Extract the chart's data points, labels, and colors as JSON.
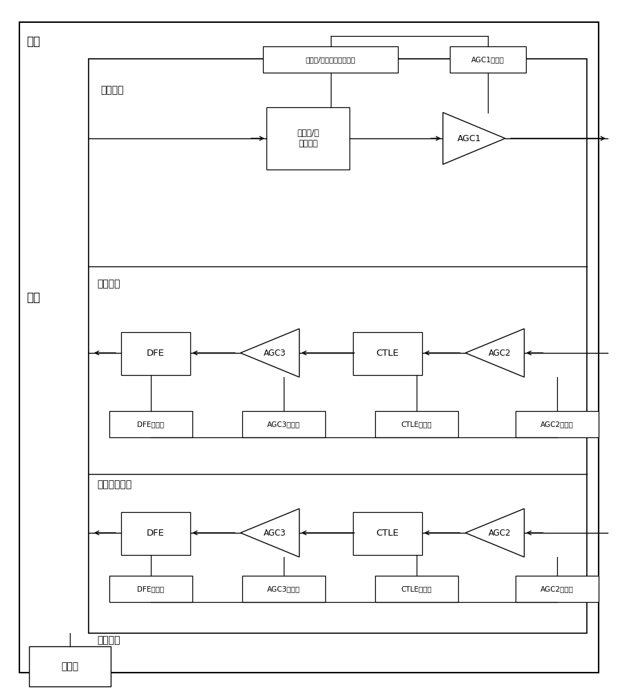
{
  "fig_width": 8.93,
  "fig_height": 10.0,
  "bg_color": "#ffffff",
  "labels": {
    "chip": "芯片",
    "interface": "接口",
    "send_ch": "发送通道",
    "recv_ch": "接收通道",
    "backup_ch": "备用接收通道",
    "mgmt_ch": "管理通道",
    "processor": "处理器",
    "pre_deemph_reg": "预加重/去加重模块寄存器",
    "agc1_reg": "AGC1寄存器",
    "pre_deemph_blk": "预加重/去\n加重模块",
    "agc1": "AGC1",
    "dfe": "DFE",
    "agc3": "AGC3",
    "ctle": "CTLE",
    "agc2": "AGC2",
    "dfe_reg": "DFE寄存器",
    "agc3_reg": "AGC3寄存器",
    "ctle_reg": "CTLE寄存器",
    "agc2_reg": "AGC2寄存器"
  }
}
